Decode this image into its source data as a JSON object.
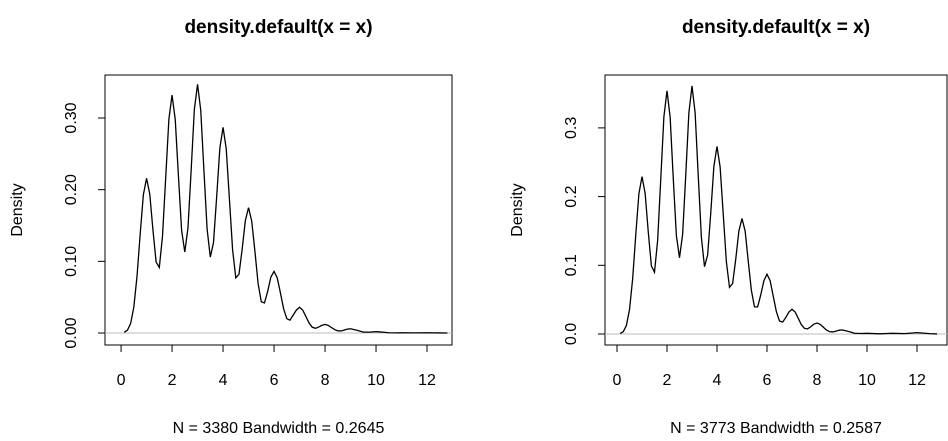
{
  "chart_data": [
    {
      "type": "line",
      "title": "density.default(x = x)",
      "xlabel": "N = 3380   Bandwidth = 0.2645",
      "ylabel": "Density",
      "x": [
        0.125,
        0.25,
        0.375,
        0.5,
        0.625,
        0.75,
        0.875,
        1,
        1.125,
        1.25,
        1.375,
        1.5,
        1.625,
        1.75,
        1.875,
        2,
        2.125,
        2.25,
        2.375,
        2.5,
        2.625,
        2.75,
        2.875,
        3,
        3.125,
        3.25,
        3.375,
        3.5,
        3.625,
        3.75,
        3.875,
        4,
        4.125,
        4.25,
        4.375,
        4.5,
        4.625,
        4.75,
        4.875,
        5,
        5.125,
        5.25,
        5.375,
        5.5,
        5.625,
        5.75,
        5.875,
        6,
        6.125,
        6.25,
        6.375,
        6.5,
        6.625,
        6.75,
        6.875,
        7,
        7.125,
        7.25,
        7.375,
        7.5,
        7.625,
        7.75,
        7.875,
        8,
        8.125,
        8.25,
        8.375,
        8.5,
        8.625,
        8.75,
        8.875,
        9,
        9.25,
        9.5,
        9.75,
        10,
        10.25,
        10.5,
        10.75,
        11,
        11.5,
        12,
        12.5,
        12.8
      ],
      "values": [
        0.001,
        0.0039,
        0.0132,
        0.036,
        0.079,
        0.138,
        0.193,
        0.216,
        0.194,
        0.144,
        0.099,
        0.0915,
        0.135,
        0.216,
        0.298,
        0.332,
        0.298,
        0.219,
        0.143,
        0.113,
        0.147,
        0.228,
        0.312,
        0.347,
        0.311,
        0.227,
        0.145,
        0.106,
        0.126,
        0.19,
        0.258,
        0.287,
        0.257,
        0.187,
        0.116,
        0.077,
        0.082,
        0.117,
        0.157,
        0.175,
        0.156,
        0.114,
        0.069,
        0.0436,
        0.042,
        0.058,
        0.078,
        0.086,
        0.077,
        0.056,
        0.034,
        0.02,
        0.018,
        0.025,
        0.032,
        0.036,
        0.032,
        0.023,
        0.014,
        0.008,
        0.0066,
        0.0083,
        0.0107,
        0.012,
        0.0107,
        0.0077,
        0.0048,
        0.003,
        0.0029,
        0.004,
        0.0054,
        0.006,
        0.0039,
        0.0013,
        0.0013,
        0.002,
        0.0013,
        0.0004,
        0.0002,
        0.0004,
        0.0002,
        0.0004,
        0.0001,
        0
      ],
      "color": "#000000",
      "zero_line": true,
      "xlim": [
        -0.63,
        12.98
      ],
      "ylim": [
        -0.0167,
        0.36
      ],
      "xticks": [
        0,
        2,
        4,
        6,
        8,
        10,
        12
      ],
      "yticks": [
        {
          "value": 0,
          "label": "0.00"
        },
        {
          "value": 0.1,
          "label": "0.10"
        },
        {
          "value": 0.2,
          "label": "0.20"
        },
        {
          "value": 0.3,
          "label": "0.30"
        }
      ]
    },
    {
      "type": "line",
      "title": "density.default(x = x)",
      "xlabel": "N = 3773   Bandwidth = 0.2587",
      "ylabel": "Density",
      "x": [
        0.125,
        0.25,
        0.375,
        0.5,
        0.625,
        0.75,
        0.875,
        1,
        1.125,
        1.25,
        1.375,
        1.5,
        1.625,
        1.75,
        1.875,
        2,
        2.125,
        2.25,
        2.375,
        2.5,
        2.625,
        2.75,
        2.875,
        3,
        3.125,
        3.25,
        3.375,
        3.5,
        3.625,
        3.75,
        3.875,
        4,
        4.125,
        4.25,
        4.375,
        4.5,
        4.625,
        4.75,
        4.875,
        5,
        5.125,
        5.25,
        5.375,
        5.5,
        5.625,
        5.75,
        5.875,
        6,
        6.125,
        6.25,
        6.375,
        6.5,
        6.625,
        6.75,
        6.875,
        7,
        7.125,
        7.25,
        7.375,
        7.5,
        7.625,
        7.75,
        7.875,
        8,
        8.125,
        8.25,
        8.375,
        8.5,
        8.625,
        8.75,
        8.875,
        9,
        9.25,
        9.5,
        9.75,
        10,
        10.5,
        11,
        11.5,
        12,
        12.5,
        12.8
      ],
      "values": [
        0.0007,
        0.0034,
        0.0124,
        0.0355,
        0.08,
        0.144,
        0.204,
        0.229,
        0.205,
        0.149,
        0.099,
        0.09,
        0.136,
        0.225,
        0.316,
        0.354,
        0.316,
        0.227,
        0.143,
        0.111,
        0.145,
        0.231,
        0.322,
        0.361,
        0.322,
        0.23,
        0.141,
        0.098,
        0.115,
        0.176,
        0.244,
        0.273,
        0.243,
        0.174,
        0.105,
        0.068,
        0.0735,
        0.109,
        0.15,
        0.168,
        0.15,
        0.106,
        0.0635,
        0.0395,
        0.0395,
        0.057,
        0.0775,
        0.087,
        0.0775,
        0.055,
        0.0324,
        0.019,
        0.0173,
        0.0239,
        0.032,
        0.036,
        0.032,
        0.0228,
        0.0135,
        0.0081,
        0.0075,
        0.0105,
        0.0143,
        0.016,
        0.0142,
        0.01,
        0.0059,
        0.0034,
        0.003,
        0.004,
        0.0054,
        0.006,
        0.0038,
        0.0011,
        0.0007,
        0.001,
        0.0003,
        0.001,
        0.0005,
        0.002,
        0.0005,
        0.0001
      ],
      "color": "#000000",
      "zero_line": true,
      "xlim": [
        -0.48,
        13.2
      ],
      "ylim": [
        -0.016,
        0.377
      ],
      "xticks": [
        0,
        2,
        4,
        6,
        8,
        10,
        12
      ],
      "yticks": [
        {
          "value": 0,
          "label": "0.0"
        },
        {
          "value": 0.1,
          "label": "0.1"
        },
        {
          "value": 0.2,
          "label": "0.2"
        },
        {
          "value": 0.3,
          "label": "0.3"
        }
      ]
    }
  ]
}
